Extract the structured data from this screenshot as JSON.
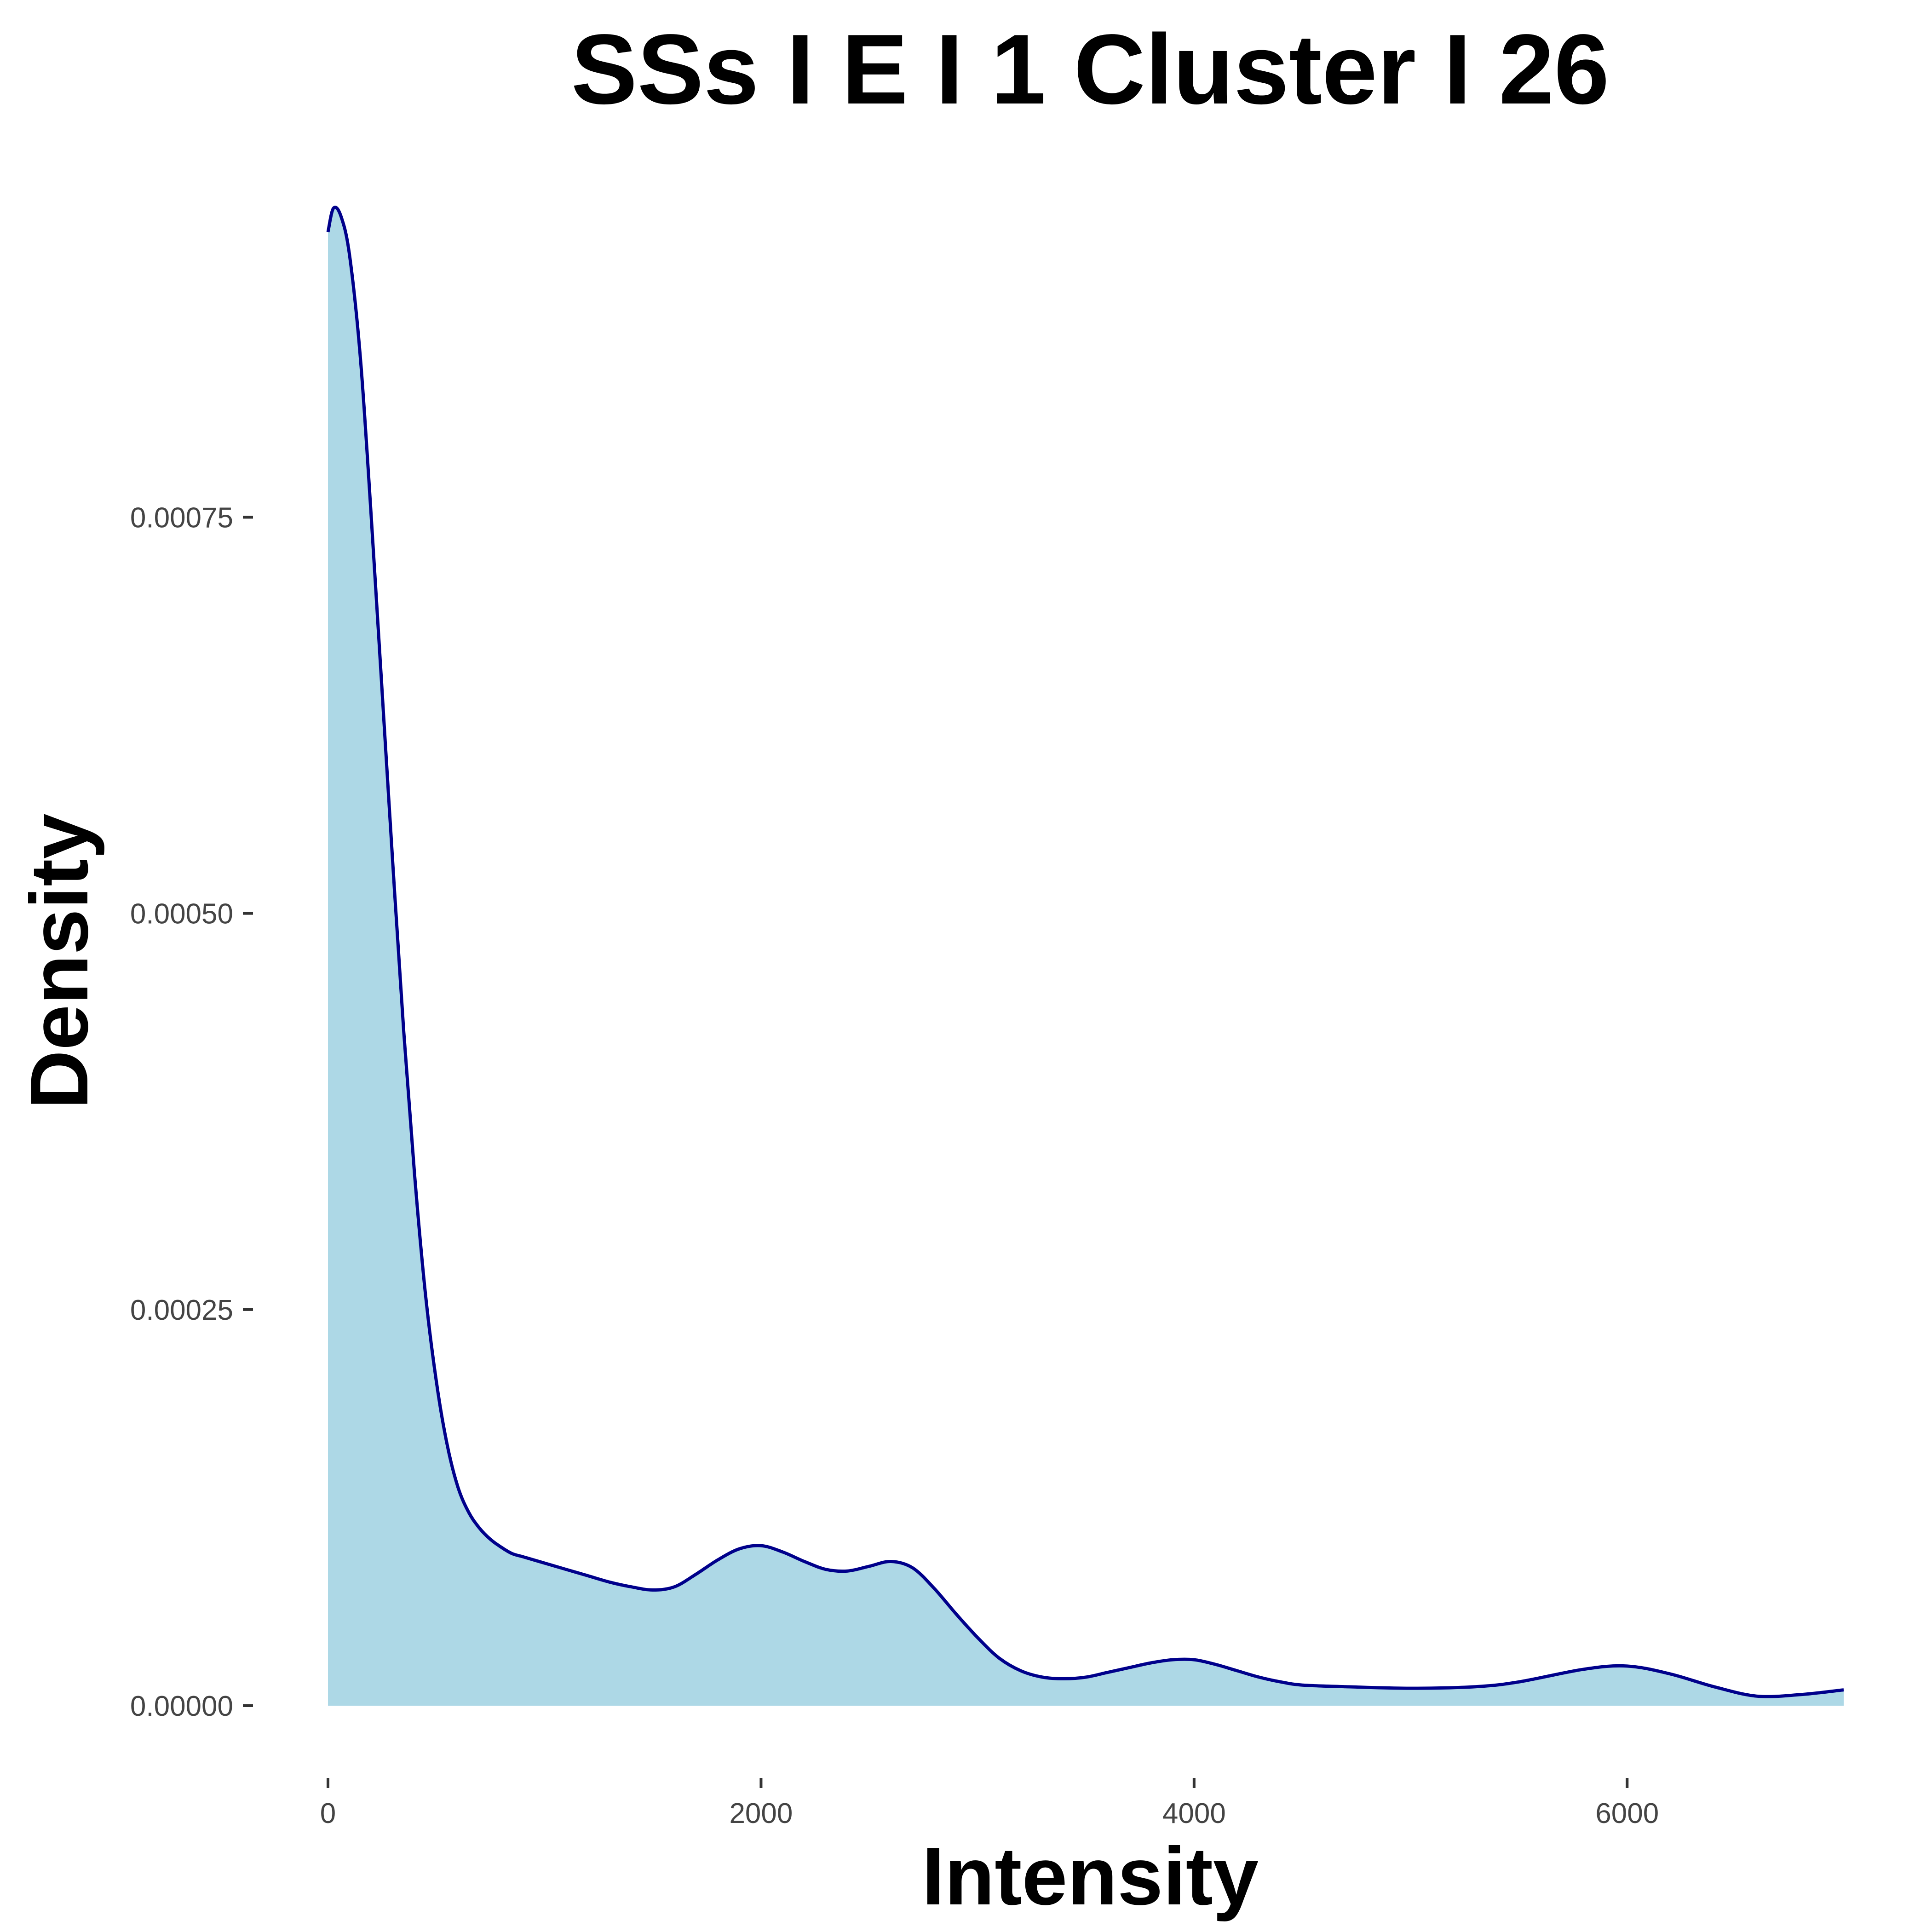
{
  "chart_data": {
    "type": "area",
    "title": "SSs I E I 1 Cluster I  26",
    "xlabel": "Intensity",
    "ylabel": "Density",
    "xlim": [
      0,
      7000
    ],
    "ylim": [
      0,
      0.00094
    ],
    "grid": false,
    "legend": "none",
    "x_ticks": [
      0,
      2000,
      4000,
      6000
    ],
    "x_tick_labels": [
      "0",
      "2000",
      "4000",
      "6000"
    ],
    "y_ticks": [
      0,
      0.00025,
      0.0005,
      0.00075
    ],
    "y_tick_labels": [
      "0.00000",
      "0.00025",
      "0.00050",
      "0.00075"
    ],
    "colors": {
      "fill": "#add8e6",
      "line": "#00008b",
      "ticks": "#333333"
    },
    "series": [
      {
        "x": [
          0,
          25,
          60,
          100,
          150,
          200,
          250,
          300,
          350,
          400,
          450,
          500,
          550,
          600,
          650,
          700,
          750,
          800,
          850,
          900,
          950,
          1000,
          1100,
          1200,
          1300,
          1400,
          1500,
          1600,
          1700,
          1800,
          1900,
          2000,
          2100,
          2200,
          2300,
          2400,
          2500,
          2600,
          2700,
          2800,
          2900,
          3000,
          3100,
          3200,
          3300,
          3400,
          3500,
          3600,
          3700,
          3800,
          3900,
          4000,
          4100,
          4200,
          4300,
          4400,
          4500,
          4700,
          5000,
          5300,
          5500,
          5800,
          6000,
          6200,
          6400,
          6600,
          6800,
          7000
        ],
        "y": [
          0.00093,
          0.000945,
          0.00094,
          0.000915,
          0.00085,
          0.00075,
          0.00064,
          0.00053,
          0.000425,
          0.000335,
          0.00026,
          0.000205,
          0.000165,
          0.000138,
          0.000122,
          0.000112,
          0.000105,
          0.0001,
          9.6e-05,
          9.4e-05,
          9.2e-05,
          9e-05,
          8.6e-05,
          8.2e-05,
          7.8e-05,
          7.5e-05,
          7.3e-05,
          7.5e-05,
          8.3e-05,
          9.2e-05,
          9.9e-05,
          0.000101,
          9.7e-05,
          9.1e-05,
          8.6e-05,
          8.5e-05,
          8.8e-05,
          9.1e-05,
          8.7e-05,
          7.4e-05,
          5.8e-05,
          4.3e-05,
          3e-05,
          2.2e-05,
          1.8e-05,
          1.7e-05,
          1.8e-05,
          2.1e-05,
          2.4e-05,
          2.7e-05,
          2.9e-05,
          2.9e-05,
          2.6e-05,
          2.2e-05,
          1.8e-05,
          1.5e-05,
          1.3e-05,
          1.2e-05,
          1.1e-05,
          1.2e-05,
          1.5e-05,
          2.3e-05,
          2.5e-05,
          2e-05,
          1.2e-05,
          6e-06,
          7e-06,
          1e-05
        ]
      }
    ]
  }
}
